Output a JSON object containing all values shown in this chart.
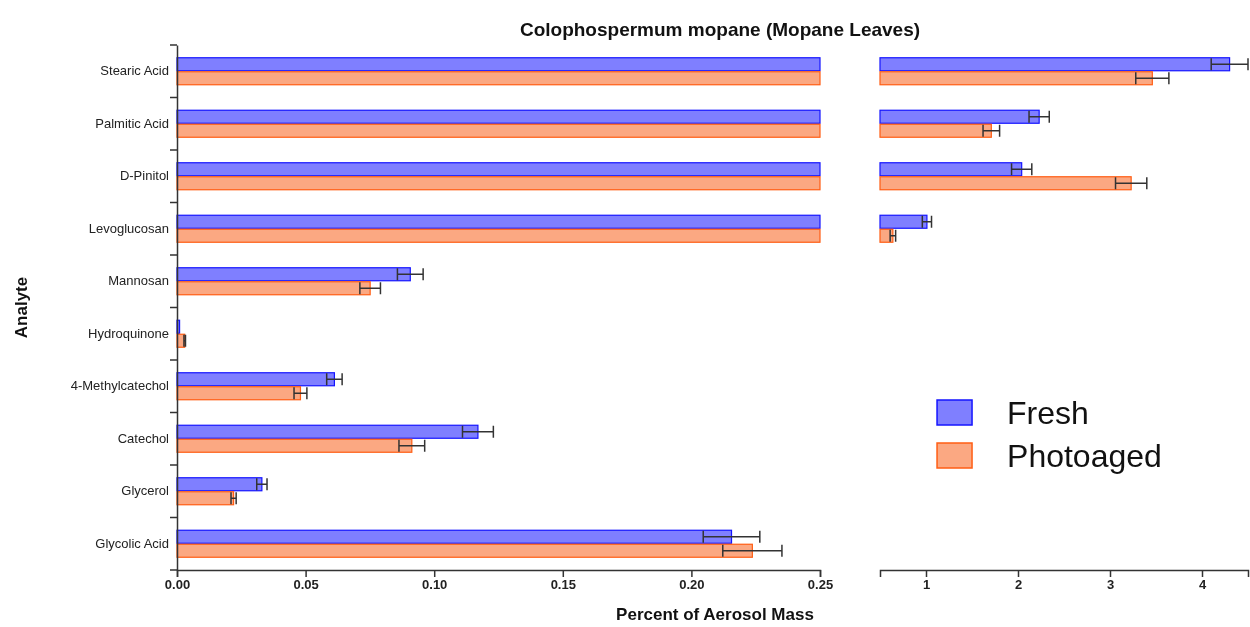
{
  "chart_data": [
    {
      "type": "bar",
      "orientation": "horizontal",
      "title": "Colophospermum mopane (Mopane Leaves)",
      "xlabel": "Percent of Aerosol Mass",
      "ylabel": "Analyte",
      "categories": [
        "Stearic Acid",
        "Palmitic Acid",
        "D-Pinitol",
        "Levoglucosan",
        "Mannosan",
        "Hydroquinone",
        "4-Methylcatechol",
        "Catechol",
        "Glycerol",
        "Glycolic Acid"
      ],
      "xlim": [
        0,
        0.25
      ],
      "xticks": [
        {
          "value": 0,
          "label": "0.00"
        },
        {
          "value": 0.05,
          "label": "0.05"
        },
        {
          "value": 0.1,
          "label": "0.10"
        },
        {
          "value": 0.15,
          "label": "0.15"
        },
        {
          "value": 0.2,
          "label": "0.20"
        },
        {
          "value": 0.25,
          "label": "0.25"
        }
      ],
      "series": [
        {
          "color": "#7f7fff",
          "values": [
            0.25,
            0.25,
            0.25,
            0.25,
            0.0907,
            0.001,
            0.0612,
            0.117,
            0.033,
            0.2156
          ],
          "errors": [
            null,
            null,
            null,
            null,
            0.005,
            null,
            0.003,
            0.006,
            0.002,
            0.011
          ]
        },
        {
          "color": "#fba882",
          "values": [
            0.25,
            0.25,
            0.25,
            0.25,
            0.0751,
            0.003,
            0.048,
            0.0913,
            0.022,
            0.2237
          ],
          "errors": [
            null,
            null,
            null,
            null,
            0.004,
            0.0003,
            0.0025,
            0.005,
            0.001,
            0.0115
          ]
        }
      ]
    },
    {
      "type": "bar",
      "orientation": "horizontal",
      "tick_labels": "x",
      "legend": "bottom",
      "categories": [
        null,
        null,
        null,
        null,
        null,
        null,
        null,
        null,
        null,
        null
      ],
      "xlim": [
        0.5,
        4.5
      ],
      "xticks": [
        1,
        2,
        3,
        4
      ],
      "series": [
        {
          "name": "Fresh",
          "color": "#7f7fff",
          "values": [
            4.3,
            2.23,
            2.04,
            1.01,
            null,
            null,
            null,
            null,
            null,
            null
          ],
          "errors": [
            0.2,
            0.11,
            0.11,
            0.05,
            null,
            null,
            null,
            null,
            null,
            null
          ]
        },
        {
          "name": "Photoaged",
          "color": "#fba882",
          "values": [
            3.46,
            1.71,
            3.23,
            0.64,
            null,
            null,
            null,
            null,
            null,
            null
          ],
          "errors": [
            0.18,
            0.09,
            0.17,
            0.03,
            null,
            null,
            null,
            null,
            null,
            null
          ]
        }
      ]
    }
  ]
}
